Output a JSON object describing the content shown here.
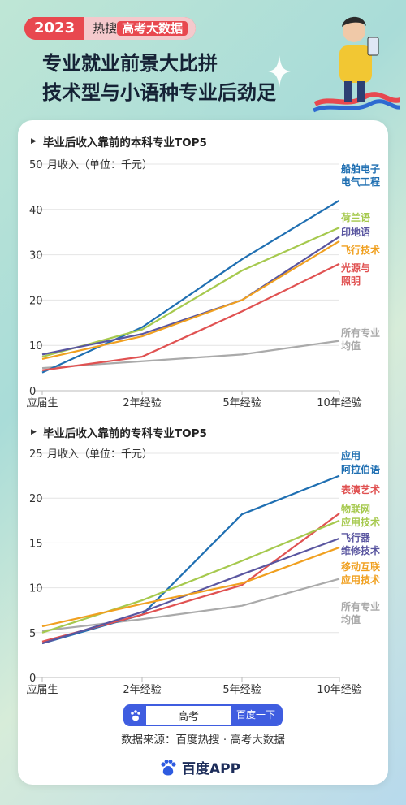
{
  "header": {
    "year": "2023",
    "badge_prefix": "热搜",
    "badge_label": "高考大数据",
    "headline_line1": "专业就业前景大比拼",
    "headline_line2": "技术型与小语种专业后劲足"
  },
  "charts": [
    {
      "section_title": "毕业后收入靠前的本科专业TOP5",
      "ylabel": "月收入（单位：千元）",
      "y_ticks": [
        "0",
        "10",
        "20",
        "30",
        "40",
        "50"
      ],
      "categories": [
        "应届生",
        "2年经验",
        "5年经验",
        "10年经验"
      ]
    },
    {
      "section_title": "毕业后收入靠前的专科专业TOP5",
      "ylabel": "月收入（单位：千元）",
      "y_ticks": [
        "0",
        "5",
        "10",
        "15",
        "20",
        "25"
      ],
      "categories": [
        "应届生",
        "2年经验",
        "5年经验",
        "10年经验"
      ]
    }
  ],
  "chart_data": [
    {
      "type": "line",
      "categories": [
        "应届生",
        "2年经验",
        "5年经验",
        "10年经验"
      ],
      "ylabel": "月收入（单位：千元）",
      "ylim": [
        0,
        50
      ],
      "series": [
        {
          "name": "船舶电子电气工程",
          "color": "#1f6fb2",
          "values": [
            4,
            14,
            29,
            42
          ]
        },
        {
          "name": "荷兰语",
          "color": "#a6c94e",
          "values": [
            7.5,
            13.5,
            26.5,
            36
          ]
        },
        {
          "name": "印地语",
          "color": "#5a56a0",
          "values": [
            8,
            12.5,
            20,
            34
          ]
        },
        {
          "name": "飞行技术",
          "color": "#f0a020",
          "values": [
            7,
            12,
            20,
            33
          ]
        },
        {
          "name": "光源与照明",
          "color": "#e05252",
          "values": [
            4.5,
            7.5,
            17.5,
            28
          ]
        },
        {
          "name": "所有专业均值",
          "color": "#aaaaaa",
          "values": [
            5,
            6.5,
            8,
            11
          ]
        }
      ]
    },
    {
      "type": "line",
      "categories": [
        "应届生",
        "2年经验",
        "5年经验",
        "10年经验"
      ],
      "ylabel": "月收入（单位：千元）",
      "ylim": [
        0,
        25
      ],
      "series": [
        {
          "name": "应用阿拉伯语",
          "color": "#1f6fb2",
          "values": [
            3.8,
            7,
            18.2,
            22.5
          ]
        },
        {
          "name": "表演艺术",
          "color": "#e05252",
          "values": [
            4,
            7,
            10.3,
            18.3
          ]
        },
        {
          "name": "物联网应用技术",
          "color": "#a6c94e",
          "values": [
            5,
            8.6,
            13,
            17.5
          ]
        },
        {
          "name": "飞行器维修技术",
          "color": "#5a56a0",
          "values": [
            3.8,
            7.3,
            11.5,
            15.5
          ]
        },
        {
          "name": "移动互联应用技术",
          "color": "#f0a020",
          "values": [
            5.7,
            8.2,
            10.5,
            14.5
          ]
        },
        {
          "name": "所有专业均值",
          "color": "#aaaaaa",
          "values": [
            5.2,
            6.5,
            8,
            11
          ]
        }
      ]
    }
  ],
  "search": {
    "query": "高考",
    "button": "百度一下"
  },
  "footer": {
    "source": "数据来源：百度热搜 · 高考大数据",
    "app_name": "百度APP"
  },
  "colors": {
    "accent_red": "#e8484f",
    "brand_blue": "#3f5de0"
  }
}
